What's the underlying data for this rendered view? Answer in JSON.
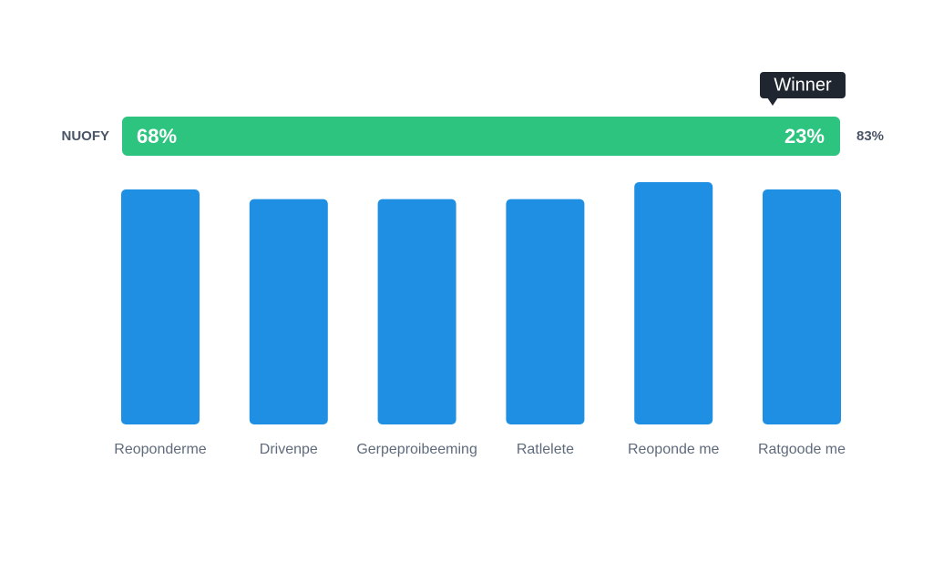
{
  "header_bar": {
    "left_label": "NUOFY",
    "left_value_label": "68%",
    "right_value_label": "23%",
    "outside_label": "83%",
    "badge": "Winner",
    "color": "#2cc47e"
  },
  "chart_data": {
    "type": "bar",
    "categories": [
      "Reoponderme",
      "Drivenpe",
      "Gerpeproibeeming",
      "Ratlelete",
      "Reoponde me",
      "Ratgoode me"
    ],
    "values": [
      97,
      93,
      93,
      93,
      100,
      97
    ],
    "color": "#1e8fe3",
    "ylim": [
      0,
      100
    ]
  }
}
